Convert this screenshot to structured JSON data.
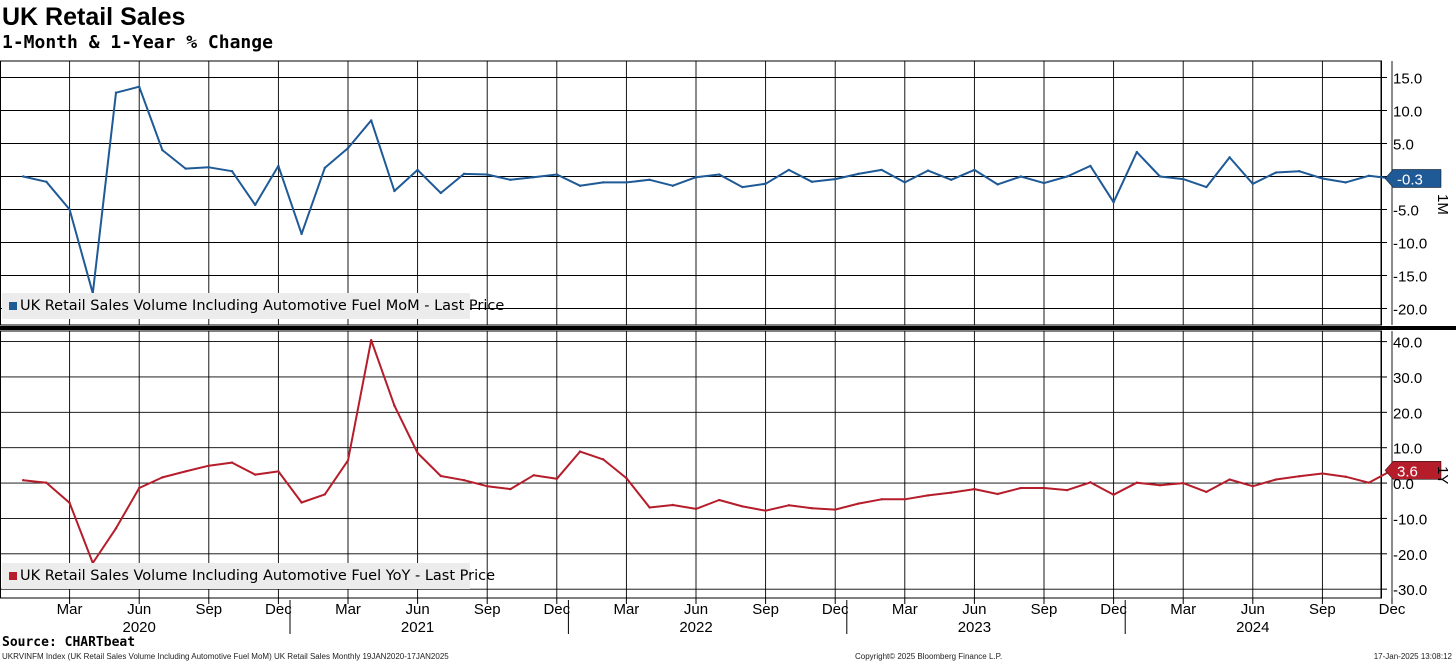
{
  "title": "UK Retail Sales",
  "subtitle": "1-Month & 1-Year % Change",
  "source": "Source: CHARTbeat",
  "footer": {
    "left": "UKRVINFM Index (UK Retail Sales Volume Including Automotive Fuel MoM) UK Retail Sales  Monthly 19JAN2020-17JAN2025",
    "center": "Copyright© 2025 Bloomberg Finance L.P.",
    "right": "17-Jan-2025 13:08:12"
  },
  "colors": {
    "mom": "#1f5a96",
    "yoy": "#b51d2b"
  },
  "chart_data": [
    {
      "type": "line",
      "panel_label": "1M",
      "legend": "UK Retail Sales Volume Including Automotive Fuel MoM - Last Price",
      "last_value_label": "-0.3",
      "ylim": [
        -22.5,
        17.5
      ],
      "yticks": [
        15.0,
        10.0,
        5.0,
        0,
        -5.0,
        -10.0,
        -15.0,
        -20.0
      ],
      "ytick_labels": [
        "15.0",
        "10.0",
        "5.0",
        "",
        "-5.0",
        "-10.0",
        "-15.0",
        "-20.0"
      ],
      "grid": true,
      "x": [
        "2020-01",
        "2020-02",
        "2020-03",
        "2020-04",
        "2020-05",
        "2020-06",
        "2020-07",
        "2020-08",
        "2020-09",
        "2020-10",
        "2020-11",
        "2020-12",
        "2021-01",
        "2021-02",
        "2021-03",
        "2021-04",
        "2021-05",
        "2021-06",
        "2021-07",
        "2021-08",
        "2021-09",
        "2021-10",
        "2021-11",
        "2021-12",
        "2022-01",
        "2022-02",
        "2022-03",
        "2022-04",
        "2022-05",
        "2022-06",
        "2022-07",
        "2022-08",
        "2022-09",
        "2022-10",
        "2022-11",
        "2022-12",
        "2023-01",
        "2023-02",
        "2023-03",
        "2023-04",
        "2023-05",
        "2023-06",
        "2023-07",
        "2023-08",
        "2023-09",
        "2023-10",
        "2023-11",
        "2023-12",
        "2024-01",
        "2024-02",
        "2024-03",
        "2024-04",
        "2024-05",
        "2024-06",
        "2024-07",
        "2024-08",
        "2024-09",
        "2024-10",
        "2024-11",
        "2024-12"
      ],
      "values": [
        0.0,
        -0.8,
        -5.0,
        -17.7,
        12.7,
        13.6,
        4.0,
        1.2,
        1.4,
        0.8,
        -4.3,
        1.6,
        -8.7,
        1.3,
        4.3,
        8.5,
        -2.2,
        1.0,
        -2.5,
        0.4,
        0.3,
        -0.5,
        -0.1,
        0.3,
        -1.4,
        -0.9,
        -0.9,
        -0.5,
        -1.4,
        -0.1,
        0.3,
        -1.6,
        -1.1,
        1.0,
        -0.8,
        -0.4,
        0.4,
        1.0,
        -0.9,
        0.9,
        -0.5,
        1.0,
        -1.2,
        0.0,
        -1.0,
        0.0,
        1.6,
        -3.9,
        3.7,
        0.0,
        -0.4,
        -1.6,
        2.9,
        -1.1,
        0.6,
        0.8,
        -0.3,
        -0.9,
        0.1,
        -0.3
      ]
    },
    {
      "type": "line",
      "panel_label": "1Y",
      "legend": "UK Retail Sales Volume Including Automotive Fuel YoY - Last Price",
      "last_value_label": "3.6",
      "ylim": [
        -32.5,
        43
      ],
      "yticks": [
        40.0,
        30.0,
        20.0,
        10.0,
        0.0,
        -10.0,
        -20.0,
        -30.0
      ],
      "ytick_labels": [
        "40.0",
        "30.0",
        "20.0",
        "10.0",
        "0.0",
        "-10.0",
        "-20.0",
        "-30.0"
      ],
      "grid": true,
      "x": [
        "2020-01",
        "2020-02",
        "2020-03",
        "2020-04",
        "2020-05",
        "2020-06",
        "2020-07",
        "2020-08",
        "2020-09",
        "2020-10",
        "2020-11",
        "2020-12",
        "2021-01",
        "2021-02",
        "2021-03",
        "2021-04",
        "2021-05",
        "2021-06",
        "2021-07",
        "2021-08",
        "2021-09",
        "2021-10",
        "2021-11",
        "2021-12",
        "2022-01",
        "2022-02",
        "2022-03",
        "2022-04",
        "2022-05",
        "2022-06",
        "2022-07",
        "2022-08",
        "2022-09",
        "2022-10",
        "2022-11",
        "2022-12",
        "2023-01",
        "2023-02",
        "2023-03",
        "2023-04",
        "2023-05",
        "2023-06",
        "2023-07",
        "2023-08",
        "2023-09",
        "2023-10",
        "2023-11",
        "2023-12",
        "2024-01",
        "2024-02",
        "2024-03",
        "2024-04",
        "2024-05",
        "2024-06",
        "2024-07",
        "2024-08",
        "2024-09",
        "2024-10",
        "2024-11",
        "2024-12"
      ],
      "values": [
        0.8,
        0.1,
        -5.6,
        -22.6,
        -12.8,
        -1.4,
        1.6,
        3.3,
        4.9,
        5.8,
        2.4,
        3.3,
        -5.5,
        -3.2,
        6.4,
        40.4,
        21.9,
        8.5,
        2.0,
        0.8,
        -0.9,
        -1.7,
        2.2,
        1.2,
        8.9,
        6.7,
        1.4,
        -6.9,
        -6.2,
        -7.3,
        -4.8,
        -6.6,
        -7.8,
        -6.3,
        -7.1,
        -7.5,
        -5.8,
        -4.6,
        -4.6,
        -3.5,
        -2.7,
        -1.7,
        -3.1,
        -1.4,
        -1.4,
        -2.0,
        0.2,
        -3.3,
        0.1,
        -0.6,
        0.0,
        -2.5,
        1.0,
        -0.9,
        1.0,
        1.9,
        2.7,
        1.8,
        0.1,
        3.6
      ]
    }
  ],
  "x_axis": {
    "month_labels": [
      "Mar",
      "Jun",
      "Sep",
      "Dec",
      "Mar",
      "Jun",
      "Sep",
      "Dec",
      "Mar",
      "Jun",
      "Sep",
      "Dec",
      "Mar",
      "Jun",
      "Sep",
      "Dec",
      "Mar",
      "Jun",
      "Sep",
      "Dec"
    ],
    "month_dates": [
      "2020-03",
      "2020-06",
      "2020-09",
      "2020-12",
      "2021-03",
      "2021-06",
      "2021-09",
      "2021-12",
      "2022-03",
      "2022-06",
      "2022-09",
      "2022-12",
      "2023-03",
      "2023-06",
      "2023-09",
      "2023-12",
      "2024-03",
      "2024-06",
      "2024-09",
      "2024-12"
    ],
    "year_labels": [
      "2020",
      "2021",
      "2022",
      "2023",
      "2024"
    ]
  }
}
